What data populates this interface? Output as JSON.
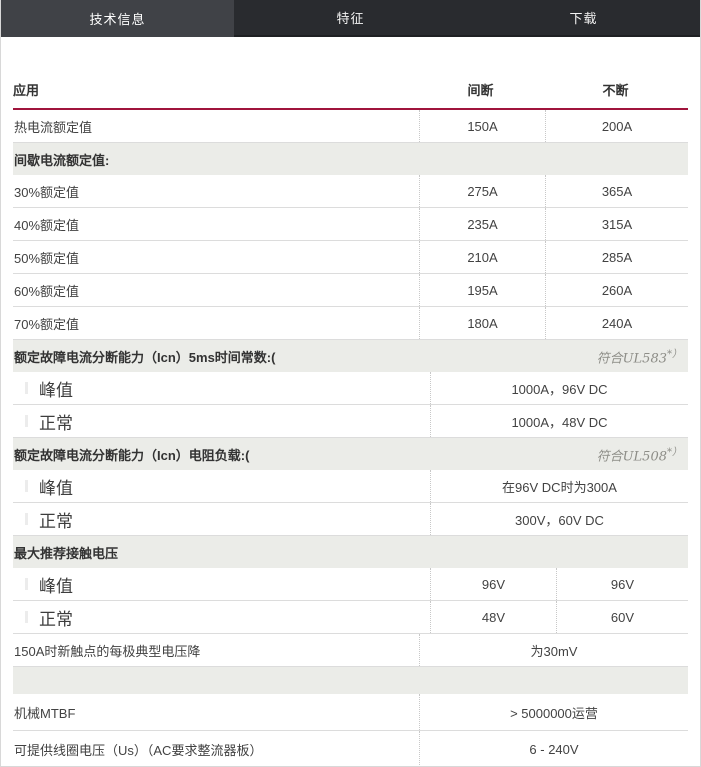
{
  "colors": {
    "accent": "#a0143c",
    "tab_bg": "#292b2f",
    "tab_active": "#404247",
    "section_bg": "#ebece8"
  },
  "tabs": [
    {
      "label": "技术信息",
      "active": true
    },
    {
      "label": "特征",
      "active": false
    },
    {
      "label": "下载",
      "active": false
    }
  ],
  "table": {
    "header": {
      "application": "应用",
      "intermittent": "间断",
      "continuous": "不断"
    },
    "rows": [
      {
        "kind": "data",
        "label": "热电流额定值",
        "cols": [
          "150A",
          "200A"
        ]
      },
      {
        "kind": "section",
        "label": "间歇电流额定值:"
      },
      {
        "kind": "data",
        "label": "30%额定值",
        "cols": [
          "275A",
          "365A"
        ]
      },
      {
        "kind": "data",
        "label": "40%额定值",
        "cols": [
          "235A",
          "315A"
        ]
      },
      {
        "kind": "data",
        "label": "50%额定值",
        "cols": [
          "210A",
          "285A"
        ]
      },
      {
        "kind": "data",
        "label": "60%额定值",
        "cols": [
          "195A",
          "260A"
        ]
      },
      {
        "kind": "data",
        "label": "70%额定值",
        "cols": [
          "180A",
          "240A"
        ]
      },
      {
        "kind": "section",
        "label": "额定故障电流分断能力（Icn）5ms时间常数:(",
        "note": {
          "text": "符合UL583",
          "sup": "*）"
        }
      },
      {
        "kind": "merged",
        "label": "峰值",
        "big": true,
        "value": "1000A，96V DC"
      },
      {
        "kind": "merged",
        "label": "正常",
        "big": true,
        "value": "1000A，48V DC"
      },
      {
        "kind": "section",
        "label": "额定故障电流分断能力（Icn）电阻负载:(",
        "note": {
          "text": "符合UL508",
          "sup": "*）"
        }
      },
      {
        "kind": "merged",
        "label": "峰值",
        "big": true,
        "value": "在96V DC时为300A"
      },
      {
        "kind": "merged",
        "label": "正常",
        "big": true,
        "value": "300V，60V DC"
      },
      {
        "kind": "section",
        "label": "最大推荐接触电压"
      },
      {
        "kind": "data",
        "label": "峰值",
        "big": true,
        "cols": [
          "96V",
          "96V"
        ]
      },
      {
        "kind": "data",
        "label": "正常",
        "big": true,
        "cols": [
          "48V",
          "60V"
        ]
      },
      {
        "kind": "merged",
        "label": "150A时新触点的每极典型电压降",
        "value": "为30mV"
      },
      {
        "kind": "section-empty"
      },
      {
        "kind": "merged",
        "label": "机械MTBF",
        "value": "> 5000000运营",
        "tall": true
      },
      {
        "kind": "merged",
        "label": "可提供线圈电压（Us）（AC要求整流器板）",
        "value": "6 - 240V",
        "tall": true
      }
    ]
  }
}
